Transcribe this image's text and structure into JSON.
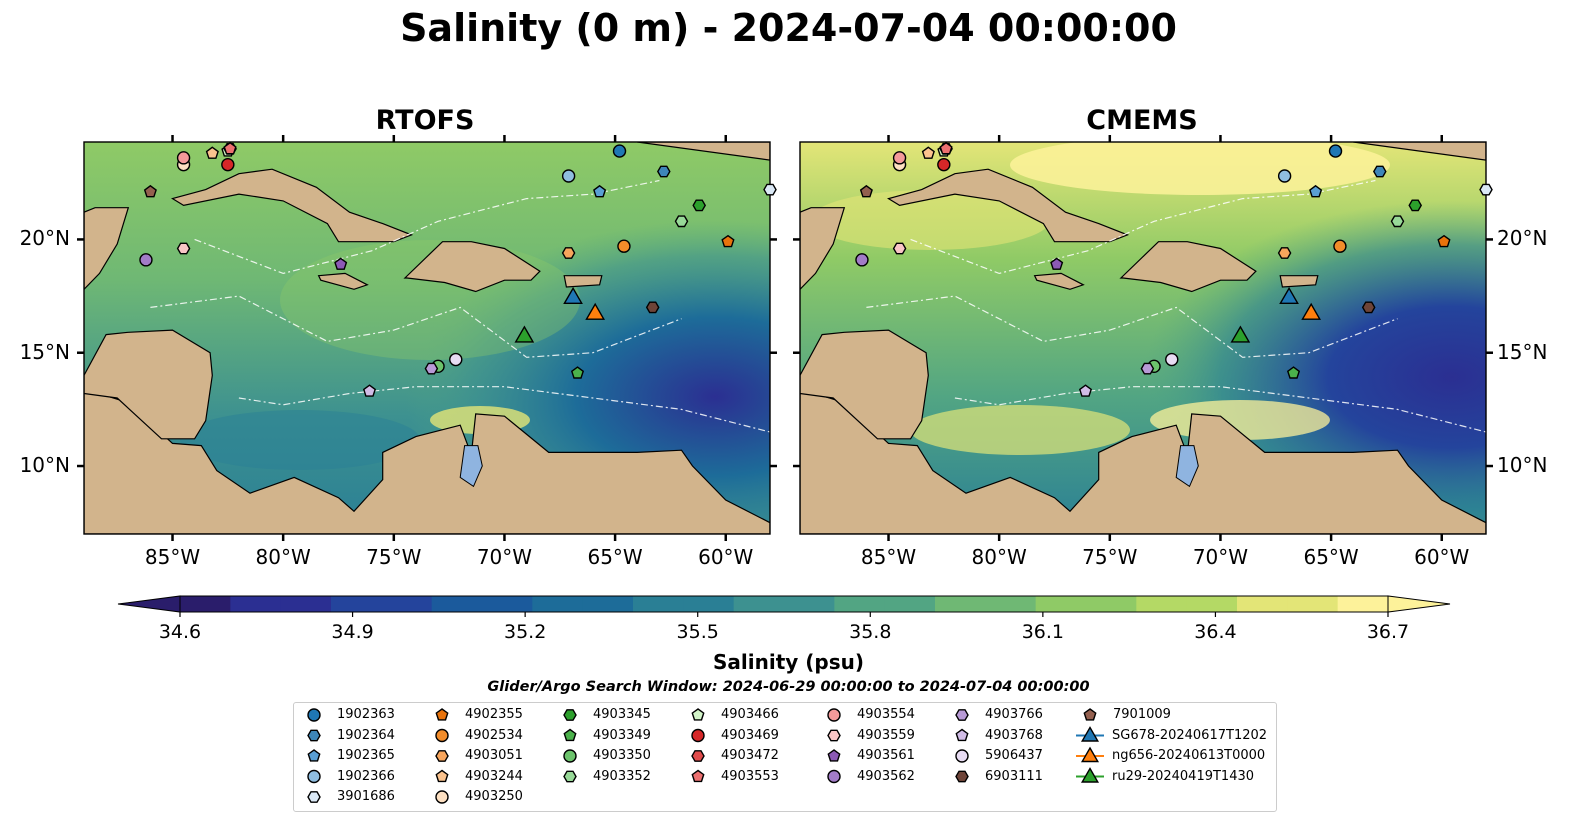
{
  "title": "Salinity (0 m) - 2024-07-04 00:00:00",
  "panels": [
    {
      "title": "RTOFS"
    },
    {
      "title": "CMEMS"
    }
  ],
  "axes": {
    "lat_ticks": [
      "20°N",
      "15°N",
      "10°N"
    ],
    "lon_ticks": [
      "85°W",
      "80°W",
      "75°W",
      "70°W",
      "65°W",
      "60°W"
    ],
    "lon_range": [
      -89,
      -58
    ],
    "lat_range": [
      7,
      24.3
    ]
  },
  "colorbar": {
    "label": "Salinity (psu)",
    "ticks": [
      "34.6",
      "34.9",
      "35.2",
      "35.5",
      "35.8",
      "36.1",
      "36.4",
      "36.7"
    ],
    "range": [
      34.6,
      36.7
    ],
    "colors": [
      "#2a1d6b",
      "#2b2f92",
      "#24449c",
      "#1b5a9c",
      "#1d6c99",
      "#2a7f95",
      "#3d9190",
      "#52a583",
      "#6fb874",
      "#8fca66",
      "#b4d965",
      "#e3e577",
      "#fdf29a"
    ]
  },
  "search_window": "Glider/Argo Search Window: 2024-06-29 00:00:00 to 2024-07-04 00:00:00",
  "legend": [
    {
      "label": "1902363",
      "marker": "circle",
      "color": "#1f77b4"
    },
    {
      "label": "1902364",
      "marker": "hexagon",
      "color": "#3e86b8"
    },
    {
      "label": "1902365",
      "marker": "pentagon",
      "color": "#5a9fd4"
    },
    {
      "label": "1902366",
      "marker": "circle",
      "color": "#8fbde0"
    },
    {
      "label": "3901686",
      "marker": "hexagon",
      "color": "#dbe9f6"
    },
    {
      "label": "4902355",
      "marker": "pentagon",
      "color": "#e8730c"
    },
    {
      "label": "4902534",
      "marker": "circle",
      "color": "#f28c2a"
    },
    {
      "label": "4903051",
      "marker": "hexagon",
      "color": "#f7a55c"
    },
    {
      "label": "4903244",
      "marker": "pentagon",
      "color": "#fbc38e"
    },
    {
      "label": "4903250",
      "marker": "circle",
      "color": "#fde0c2"
    },
    {
      "label": "4903345",
      "marker": "hexagon",
      "color": "#2ca02c"
    },
    {
      "label": "4903349",
      "marker": "pentagon",
      "color": "#4bb14b"
    },
    {
      "label": "4903350",
      "marker": "circle",
      "color": "#6cc36c"
    },
    {
      "label": "4903352",
      "marker": "hexagon",
      "color": "#98d998"
    },
    {
      "label": "4903466",
      "marker": "pentagon",
      "color": "#d3f5c9"
    },
    {
      "label": "4903469",
      "marker": "circle",
      "color": "#d62728"
    },
    {
      "label": "4903472",
      "marker": "hexagon",
      "color": "#e04b4b"
    },
    {
      "label": "4903553",
      "marker": "pentagon",
      "color": "#ec7070"
    },
    {
      "label": "4903554",
      "marker": "circle",
      "color": "#f39a9a"
    },
    {
      "label": "4903559",
      "marker": "hexagon",
      "color": "#f9c6c6"
    },
    {
      "label": "4903561",
      "marker": "pentagon",
      "color": "#8c5ab5"
    },
    {
      "label": "4903562",
      "marker": "circle",
      "color": "#a27cc7"
    },
    {
      "label": "4903766",
      "marker": "hexagon",
      "color": "#b89ad6"
    },
    {
      "label": "4903768",
      "marker": "pentagon",
      "color": "#d1bce6"
    },
    {
      "label": "5906437",
      "marker": "circle",
      "color": "#e8dcf3"
    },
    {
      "label": "6903111",
      "marker": "hexagon",
      "color": "#6e4438"
    },
    {
      "label": "7901009",
      "marker": "pentagon",
      "color": "#94604f"
    },
    {
      "label": "SG678-20240617T1202",
      "marker": "triangle",
      "color": "#1f77b4"
    },
    {
      "label": "ng656-20240613T0000",
      "marker": "triangle",
      "color": "#ff7f0e"
    },
    {
      "label": "ru29-20240419T1430",
      "marker": "triangle",
      "color": "#2ca02c"
    }
  ],
  "observations": [
    {
      "id": "1902363",
      "lon": -64.8,
      "lat": 23.9
    },
    {
      "id": "1902364",
      "lon": -62.8,
      "lat": 23.0
    },
    {
      "id": "1902365",
      "lon": -65.7,
      "lat": 22.1
    },
    {
      "id": "1902366",
      "lon": -67.1,
      "lat": 22.8
    },
    {
      "id": "3901686",
      "lon": -58.0,
      "lat": 22.2
    },
    {
      "id": "4902355",
      "lon": -59.9,
      "lat": 19.9
    },
    {
      "id": "4902534",
      "lon": -64.6,
      "lat": 19.7
    },
    {
      "id": "4903051",
      "lon": -67.1,
      "lat": 19.4
    },
    {
      "id": "4903244",
      "lon": -83.2,
      "lat": 23.8
    },
    {
      "id": "4903250",
      "lon": -84.5,
      "lat": 23.3
    },
    {
      "id": "4903345",
      "lon": -61.2,
      "lat": 21.5
    },
    {
      "id": "4903349",
      "lon": -66.7,
      "lat": 14.1
    },
    {
      "id": "4903350",
      "lon": -73.0,
      "lat": 14.4
    },
    {
      "id": "4903352",
      "lon": -62.0,
      "lat": 20.8
    },
    {
      "id": "4903466",
      "lon": -82.5,
      "lat": 23.9
    },
    {
      "id": "4903469",
      "lon": -82.5,
      "lat": 23.3
    },
    {
      "id": "4903472",
      "lon": -82.4,
      "lat": 24.0
    },
    {
      "id": "4903553",
      "lon": -82.4,
      "lat": 24.0
    },
    {
      "id": "4903554",
      "lon": -84.5,
      "lat": 23.6
    },
    {
      "id": "4903559",
      "lon": -84.5,
      "lat": 19.6
    },
    {
      "id": "4903561",
      "lon": -77.4,
      "lat": 18.9
    },
    {
      "id": "4903562",
      "lon": -86.2,
      "lat": 19.1
    },
    {
      "id": "4903766",
      "lon": -73.3,
      "lat": 14.3
    },
    {
      "id": "4903768",
      "lon": -76.1,
      "lat": 13.3
    },
    {
      "id": "5906437",
      "lon": -72.2,
      "lat": 14.7
    },
    {
      "id": "6903111",
      "lon": -63.3,
      "lat": 17.0
    },
    {
      "id": "7901009",
      "lon": -86.0,
      "lat": 22.1
    },
    {
      "id": "SG678-20240617T1202",
      "lon": -66.9,
      "lat": 17.4
    },
    {
      "id": "ng656-20240613T0000",
      "lon": -65.9,
      "lat": 16.7
    },
    {
      "id": "ru29-20240419T1430",
      "lon": -69.1,
      "lat": 15.7
    }
  ]
}
